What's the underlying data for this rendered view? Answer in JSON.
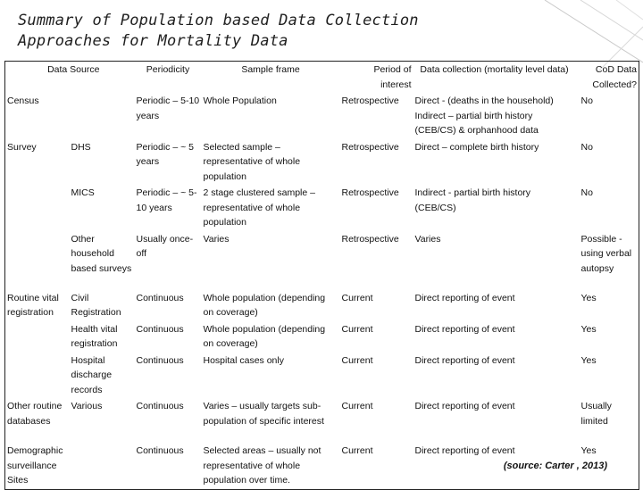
{
  "title": "Summary of Population based Data Collection Approaches for Mortality Data",
  "headers": {
    "source": "Data Source",
    "periodicity": "Periodicity",
    "sample_frame": "Sample frame",
    "period": "Period of interest",
    "collection": "Data collection (mortality level data)",
    "cod": "CoD Data Collected?"
  },
  "rows": [
    {
      "source_a": "Census",
      "source_b": "",
      "periodicity": "Periodic – 5-10 years",
      "sample_frame": "Whole Population",
      "period": "Retrospective",
      "collection": "Direct - (deaths in the household) Indirect – partial birth history (CEB/CS) & orphanhood data",
      "cod": "No"
    },
    {
      "source_a": "Survey",
      "source_b": "DHS",
      "periodicity": "Periodic – ~ 5 years",
      "sample_frame": "Selected sample – representative of whole population",
      "period": "Retrospective",
      "collection": "Direct – complete birth history",
      "cod": "No"
    },
    {
      "source_a": "",
      "source_b": "MICS",
      "periodicity": "Periodic – ~ 5-10 years",
      "sample_frame": "2 stage clustered sample – representative of whole population",
      "period": "Retrospective",
      "collection": "Indirect - partial birth history (CEB/CS)",
      "cod": "No"
    },
    {
      "source_a": "",
      "source_b": "Other household based surveys",
      "periodicity": "Usually once-off",
      "sample_frame": "Varies",
      "period": "Retrospective",
      "collection": "Varies",
      "cod": "Possible - using verbal autopsy"
    },
    {
      "source_a": "Routine vital registration",
      "source_b": "Civil Registration",
      "periodicity": "Continuous",
      "sample_frame": "Whole population (depending on coverage)",
      "period": "Current",
      "collection": "Direct reporting of event",
      "cod": "Yes"
    },
    {
      "source_a": "",
      "source_b": "Health vital registration",
      "periodicity": "Continuous",
      "sample_frame": "Whole population (depending on coverage)",
      "period": "Current",
      "collection": "Direct reporting of event",
      "cod": "Yes"
    },
    {
      "source_a": "",
      "source_b": "Hospital discharge records",
      "periodicity": "Continuous",
      "sample_frame": "Hospital cases only",
      "period": "Current",
      "collection": "Direct reporting of event",
      "cod": "Yes"
    },
    {
      "source_a": "Other routine databases",
      "source_b": "Various",
      "periodicity": "Continuous",
      "sample_frame": "Varies – usually targets sub-population of specific interest",
      "period": "Current",
      "collection": "Direct reporting of event",
      "cod": "Usually limited"
    },
    {
      "source_a": "Demographic surveillance Sites",
      "source_b": "",
      "periodicity": "Continuous",
      "sample_frame": "Selected areas – usually not representative of whole population over time.",
      "period": "Current",
      "collection": "Direct reporting of event",
      "cod": "Yes"
    }
  ],
  "source_note": "(source: Carter , 2013)"
}
